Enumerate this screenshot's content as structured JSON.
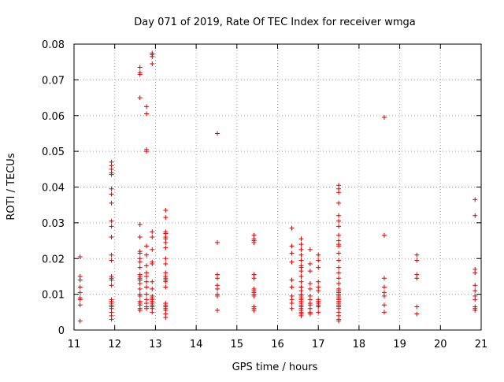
{
  "chart_data": {
    "type": "scatter",
    "title": "Day 071 of 2019, Rate Of TEC Index for receiver wmga",
    "xlabel": "GPS time / hours",
    "ylabel": "ROTI / TECUs",
    "xlim": [
      11,
      21
    ],
    "ylim": [
      0,
      0.08
    ],
    "xticks": [
      "11",
      "12",
      "13",
      "14",
      "15",
      "16",
      "17",
      "18",
      "19",
      "20",
      "21"
    ],
    "yticks": [
      "0",
      "0.01",
      "0.02",
      "0.03",
      "0.04",
      "0.05",
      "0.06",
      "0.07",
      "0.08"
    ],
    "grid": true,
    "marker": "+",
    "color": "#e00000",
    "series": [
      {
        "name": "ROTI",
        "points": [
          [
            11.15,
            0.0205
          ],
          [
            11.15,
            0.015
          ],
          [
            11.15,
            0.014
          ],
          [
            11.15,
            0.012
          ],
          [
            11.15,
            0.0105
          ],
          [
            11.15,
            0.009
          ],
          [
            11.15,
            0.0085
          ],
          [
            11.15,
            0.007
          ],
          [
            11.15,
            0.0025
          ],
          [
            11.92,
            0.047
          ],
          [
            11.92,
            0.046
          ],
          [
            11.92,
            0.045
          ],
          [
            11.92,
            0.044
          ],
          [
            11.92,
            0.0435
          ],
          [
            11.92,
            0.0395
          ],
          [
            11.92,
            0.038
          ],
          [
            11.92,
            0.0355
          ],
          [
            11.92,
            0.0305
          ],
          [
            11.92,
            0.029
          ],
          [
            11.92,
            0.026
          ],
          [
            11.92,
            0.021
          ],
          [
            11.92,
            0.0195
          ],
          [
            11.92,
            0.015
          ],
          [
            11.92,
            0.0145
          ],
          [
            11.92,
            0.014
          ],
          [
            11.92,
            0.0125
          ],
          [
            11.92,
            0.0085
          ],
          [
            11.92,
            0.008
          ],
          [
            11.92,
            0.0075
          ],
          [
            11.92,
            0.007
          ],
          [
            11.92,
            0.0065
          ],
          [
            11.92,
            0.006
          ],
          [
            11.92,
            0.005
          ],
          [
            11.92,
            0.004
          ],
          [
            11.92,
            0.003
          ],
          [
            12.62,
            0.0735
          ],
          [
            12.62,
            0.072
          ],
          [
            12.62,
            0.0715
          ],
          [
            12.62,
            0.065
          ],
          [
            12.62,
            0.0295
          ],
          [
            12.62,
            0.026
          ],
          [
            12.62,
            0.022
          ],
          [
            12.62,
            0.0215
          ],
          [
            12.62,
            0.02
          ],
          [
            12.62,
            0.019
          ],
          [
            12.62,
            0.0175
          ],
          [
            12.62,
            0.0155
          ],
          [
            12.62,
            0.015
          ],
          [
            12.62,
            0.0145
          ],
          [
            12.62,
            0.014
          ],
          [
            12.62,
            0.013
          ],
          [
            12.62,
            0.0115
          ],
          [
            12.62,
            0.01
          ],
          [
            12.62,
            0.0095
          ],
          [
            12.62,
            0.008
          ],
          [
            12.62,
            0.0075
          ],
          [
            12.62,
            0.007
          ],
          [
            12.62,
            0.006
          ],
          [
            12.62,
            0.0055
          ],
          [
            12.78,
            0.0625
          ],
          [
            12.78,
            0.0605
          ],
          [
            12.78,
            0.0505
          ],
          [
            12.78,
            0.05
          ],
          [
            12.78,
            0.0235
          ],
          [
            12.78,
            0.021
          ],
          [
            12.78,
            0.018
          ],
          [
            12.78,
            0.016
          ],
          [
            12.78,
            0.015
          ],
          [
            12.78,
            0.0135
          ],
          [
            12.78,
            0.012
          ],
          [
            12.78,
            0.01
          ],
          [
            12.78,
            0.0085
          ],
          [
            12.78,
            0.0075
          ],
          [
            12.78,
            0.0065
          ],
          [
            12.78,
            0.006
          ],
          [
            12.92,
            0.0775
          ],
          [
            12.92,
            0.077
          ],
          [
            12.92,
            0.0765
          ],
          [
            12.92,
            0.0745
          ],
          [
            12.92,
            0.0275
          ],
          [
            12.92,
            0.026
          ],
          [
            12.92,
            0.0225
          ],
          [
            12.92,
            0.019
          ],
          [
            12.92,
            0.0185
          ],
          [
            12.92,
            0.0135
          ],
          [
            12.92,
            0.0115
          ],
          [
            12.92,
            0.0095
          ],
          [
            12.92,
            0.009
          ],
          [
            12.92,
            0.0085
          ],
          [
            12.92,
            0.008
          ],
          [
            12.92,
            0.0075
          ],
          [
            12.92,
            0.007
          ],
          [
            12.92,
            0.0065
          ],
          [
            12.92,
            0.006
          ],
          [
            12.92,
            0.005
          ],
          [
            13.25,
            0.0335
          ],
          [
            13.25,
            0.0315
          ],
          [
            13.25,
            0.0275
          ],
          [
            13.25,
            0.027
          ],
          [
            13.25,
            0.026
          ],
          [
            13.25,
            0.0255
          ],
          [
            13.25,
            0.0245
          ],
          [
            13.25,
            0.023
          ],
          [
            13.25,
            0.02
          ],
          [
            13.25,
            0.0185
          ],
          [
            13.25,
            0.016
          ],
          [
            13.25,
            0.015
          ],
          [
            13.25,
            0.0145
          ],
          [
            13.25,
            0.014
          ],
          [
            13.25,
            0.0135
          ],
          [
            13.25,
            0.012
          ],
          [
            13.25,
            0.0075
          ],
          [
            13.25,
            0.007
          ],
          [
            13.25,
            0.0065
          ],
          [
            13.25,
            0.006
          ],
          [
            13.25,
            0.0055
          ],
          [
            13.25,
            0.0045
          ],
          [
            13.25,
            0.0035
          ],
          [
            14.52,
            0.055
          ],
          [
            14.52,
            0.0245
          ],
          [
            14.52,
            0.0155
          ],
          [
            14.52,
            0.0145
          ],
          [
            14.52,
            0.0125
          ],
          [
            14.52,
            0.0115
          ],
          [
            14.52,
            0.01
          ],
          [
            14.52,
            0.0095
          ],
          [
            14.52,
            0.0055
          ],
          [
            15.42,
            0.0265
          ],
          [
            15.42,
            0.0255
          ],
          [
            15.42,
            0.025
          ],
          [
            15.42,
            0.0245
          ],
          [
            15.42,
            0.0155
          ],
          [
            15.42,
            0.0145
          ],
          [
            15.42,
            0.0115
          ],
          [
            15.42,
            0.011
          ],
          [
            15.42,
            0.0105
          ],
          [
            15.42,
            0.01
          ],
          [
            15.42,
            0.0095
          ],
          [
            15.42,
            0.0065
          ],
          [
            15.42,
            0.006
          ],
          [
            15.42,
            0.0055
          ],
          [
            16.35,
            0.0285
          ],
          [
            16.35,
            0.0235
          ],
          [
            16.35,
            0.0215
          ],
          [
            16.35,
            0.019
          ],
          [
            16.35,
            0.014
          ],
          [
            16.35,
            0.012
          ],
          [
            16.35,
            0.0095
          ],
          [
            16.35,
            0.0085
          ],
          [
            16.35,
            0.0075
          ],
          [
            16.35,
            0.006
          ],
          [
            16.58,
            0.0255
          ],
          [
            16.58,
            0.024
          ],
          [
            16.58,
            0.0225
          ],
          [
            16.58,
            0.021
          ],
          [
            16.58,
            0.0195
          ],
          [
            16.58,
            0.018
          ],
          [
            16.58,
            0.0175
          ],
          [
            16.58,
            0.0165
          ],
          [
            16.58,
            0.015
          ],
          [
            16.58,
            0.0135
          ],
          [
            16.58,
            0.012
          ],
          [
            16.58,
            0.011
          ],
          [
            16.58,
            0.01
          ],
          [
            16.58,
            0.0095
          ],
          [
            16.58,
            0.009
          ],
          [
            16.58,
            0.0085
          ],
          [
            16.58,
            0.008
          ],
          [
            16.58,
            0.0075
          ],
          [
            16.58,
            0.007
          ],
          [
            16.58,
            0.0065
          ],
          [
            16.58,
            0.006
          ],
          [
            16.58,
            0.0055
          ],
          [
            16.58,
            0.005
          ],
          [
            16.58,
            0.0045
          ],
          [
            16.58,
            0.004
          ],
          [
            16.8,
            0.0225
          ],
          [
            16.8,
            0.0185
          ],
          [
            16.8,
            0.0165
          ],
          [
            16.8,
            0.013
          ],
          [
            16.8,
            0.0115
          ],
          [
            16.8,
            0.0095
          ],
          [
            16.8,
            0.0085
          ],
          [
            16.8,
            0.0075
          ],
          [
            16.8,
            0.007
          ],
          [
            16.8,
            0.006
          ],
          [
            16.8,
            0.005
          ],
          [
            16.8,
            0.0045
          ],
          [
            17.0,
            0.021
          ],
          [
            17.0,
            0.0195
          ],
          [
            17.0,
            0.0175
          ],
          [
            17.0,
            0.0135
          ],
          [
            17.0,
            0.012
          ],
          [
            17.0,
            0.011
          ],
          [
            17.0,
            0.0085
          ],
          [
            17.0,
            0.008
          ],
          [
            17.0,
            0.0075
          ],
          [
            17.0,
            0.007
          ],
          [
            17.0,
            0.0065
          ],
          [
            17.0,
            0.005
          ],
          [
            17.5,
            0.0405
          ],
          [
            17.5,
            0.0395
          ],
          [
            17.5,
            0.0385
          ],
          [
            17.5,
            0.0355
          ],
          [
            17.5,
            0.032
          ],
          [
            17.5,
            0.0305
          ],
          [
            17.5,
            0.029
          ],
          [
            17.5,
            0.0265
          ],
          [
            17.5,
            0.025
          ],
          [
            17.5,
            0.024
          ],
          [
            17.5,
            0.0235
          ],
          [
            17.5,
            0.0215
          ],
          [
            17.5,
            0.0195
          ],
          [
            17.5,
            0.0175
          ],
          [
            17.5,
            0.016
          ],
          [
            17.5,
            0.0145
          ],
          [
            17.5,
            0.013
          ],
          [
            17.5,
            0.0115
          ],
          [
            17.5,
            0.011
          ],
          [
            17.5,
            0.0105
          ],
          [
            17.5,
            0.01
          ],
          [
            17.5,
            0.0095
          ],
          [
            17.5,
            0.009
          ],
          [
            17.5,
            0.0085
          ],
          [
            17.5,
            0.008
          ],
          [
            17.5,
            0.0075
          ],
          [
            17.5,
            0.007
          ],
          [
            17.5,
            0.0065
          ],
          [
            17.5,
            0.006
          ],
          [
            17.5,
            0.005
          ],
          [
            17.5,
            0.004
          ],
          [
            17.5,
            0.003
          ],
          [
            17.5,
            0.0025
          ],
          [
            18.62,
            0.0595
          ],
          [
            18.62,
            0.0265
          ],
          [
            18.62,
            0.0145
          ],
          [
            18.62,
            0.012
          ],
          [
            18.62,
            0.0105
          ],
          [
            18.62,
            0.0095
          ],
          [
            18.62,
            0.007
          ],
          [
            18.62,
            0.005
          ],
          [
            19.42,
            0.021
          ],
          [
            19.42,
            0.0195
          ],
          [
            19.42,
            0.0155
          ],
          [
            19.42,
            0.0145
          ],
          [
            19.42,
            0.0065
          ],
          [
            19.42,
            0.0045
          ],
          [
            20.85,
            0.0365
          ],
          [
            20.85,
            0.032
          ],
          [
            20.85,
            0.017
          ],
          [
            20.85,
            0.016
          ],
          [
            20.85,
            0.0125
          ],
          [
            20.85,
            0.011
          ],
          [
            20.85,
            0.0095
          ],
          [
            20.85,
            0.0085
          ],
          [
            20.85,
            0.0065
          ],
          [
            20.85,
            0.006
          ],
          [
            20.85,
            0.0055
          ]
        ]
      }
    ]
  }
}
